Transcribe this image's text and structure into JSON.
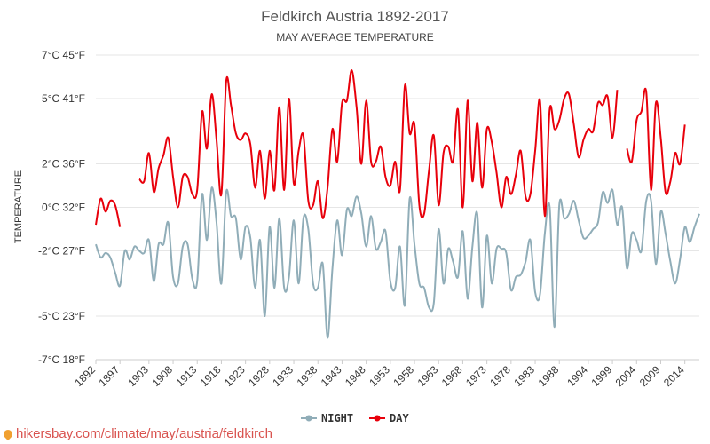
{
  "chart_data": {
    "type": "line",
    "title": "Feldkirch Austria 1892-2017",
    "subtitle": "MAY AVERAGE TEMPERATURE",
    "ylabel": "TEMPERATURE",
    "ylim": [
      -7,
      7
    ],
    "yticks": [
      {
        "value": 7,
        "label": "7°C 45°F"
      },
      {
        "value": 5,
        "label": "5°C 41°F"
      },
      {
        "value": 2,
        "label": "2°C 36°F"
      },
      {
        "value": 0,
        "label": "0°C 32°F"
      },
      {
        "value": -2,
        "label": "-2°C 27°F"
      },
      {
        "value": -5,
        "label": "-5°C 23°F"
      },
      {
        "value": -7,
        "label": "-7°C 18°F"
      }
    ],
    "xlim": [
      1892,
      2017
    ],
    "xticks": [
      1892,
      1897,
      1903,
      1908,
      1913,
      1918,
      1923,
      1928,
      1933,
      1938,
      1943,
      1948,
      1953,
      1958,
      1963,
      1968,
      1973,
      1978,
      1983,
      1988,
      1994,
      1999,
      2004,
      2009,
      2014
    ],
    "grid": true,
    "legend_position": "bottom",
    "series": [
      {
        "name": "NIGHT",
        "color": "#90adb8",
        "x_start": 1892,
        "values": [
          -1.7,
          -2.3,
          -2.1,
          -2.3,
          -3.0,
          -3.6,
          -2.0,
          -2.4,
          -1.8,
          -2.0,
          -2.1,
          -1.5,
          -3.4,
          -1.7,
          -1.7,
          -0.7,
          -3.2,
          -3.5,
          -1.8,
          -1.7,
          -3.3,
          -3.4,
          0.6,
          -1.5,
          0.9,
          -0.7,
          -3.5,
          0.7,
          -0.4,
          -0.5,
          -2.4,
          -0.9,
          -1.4,
          -3.7,
          -1.5,
          -5.0,
          -0.9,
          -3.7,
          -0.5,
          -3.7,
          -3.2,
          -0.6,
          -3.5,
          -0.5,
          -1.0,
          -3.5,
          -3.7,
          -2.6,
          -6.0,
          -2.8,
          -0.6,
          -2.2,
          -0.1,
          -0.4,
          0.5,
          -0.3,
          -1.8,
          -0.4,
          -1.9,
          -1.6,
          -1.1,
          -3.4,
          -3.7,
          -1.8,
          -4.5,
          0.4,
          -1.7,
          -3.5,
          -3.7,
          -4.6,
          -4.4,
          -1.0,
          -3.5,
          -1.9,
          -2.5,
          -3.2,
          -1.1,
          -4.2,
          -1.8,
          -0.3,
          -4.6,
          -1.3,
          -3.5,
          -1.9,
          -1.9,
          -2.1,
          -3.8,
          -3.2,
          -3.1,
          -2.5,
          -1.5,
          -3.9,
          -4.0,
          -1.2,
          0.0,
          -5.5,
          0.1,
          -0.5,
          -0.3,
          0.3,
          -0.6,
          -1.4,
          -1.3,
          -1.0,
          -0.7,
          0.7,
          0.2,
          0.8,
          -0.8,
          0.0,
          -2.8,
          -1.2,
          -1.5,
          -2.0,
          0.3,
          0.3,
          -2.6,
          -0.2,
          -1.2,
          -2.5,
          -3.5,
          -2.4,
          -0.9,
          -1.6,
          -0.9,
          -0.3
        ]
      },
      {
        "name": "DAY",
        "color": "#e8000b",
        "x_start": 1892,
        "values": [
          -0.8,
          0.4,
          -0.2,
          0.3,
          0.1,
          -0.9,
          null,
          null,
          null,
          1.3,
          1.2,
          2.5,
          0.7,
          1.8,
          2.4,
          3.2,
          1.4,
          0.0,
          1.4,
          1.4,
          0.6,
          0.8,
          4.4,
          2.7,
          5.2,
          3.1,
          0.6,
          5.8,
          4.7,
          3.4,
          3.1,
          3.4,
          2.9,
          0.9,
          2.6,
          0.4,
          2.6,
          0.8,
          4.6,
          0.8,
          5.0,
          1.1,
          2.6,
          3.3,
          0.3,
          0.1,
          1.2,
          -0.5,
          0.9,
          3.6,
          2.1,
          4.8,
          4.9,
          6.3,
          4.6,
          2.0,
          4.9,
          2.1,
          2.1,
          2.8,
          1.4,
          1.0,
          2.1,
          0.8,
          5.6,
          3.4,
          3.8,
          0.1,
          -0.3,
          1.7,
          3.3,
          0.1,
          2.5,
          2.8,
          2.1,
          4.5,
          0.0,
          4.9,
          1.2,
          3.9,
          0.9,
          3.6,
          3.0,
          1.6,
          0.0,
          1.4,
          0.6,
          1.5,
          2.6,
          0.5,
          0.6,
          2.6,
          4.9,
          -0.4,
          4.5,
          3.6,
          4.0,
          5.0,
          5.2,
          3.8,
          2.3,
          3.1,
          3.6,
          3.5,
          4.8,
          4.7,
          5.1,
          3.2,
          5.4,
          null,
          2.7,
          2.1,
          4.0,
          4.4,
          5.3,
          0.8,
          4.8,
          3.2,
          0.7,
          1.2,
          2.5,
          2.0,
          3.8
        ]
      }
    ]
  },
  "watermark": "hikersbay.com/climate/may/austria/feldkirch"
}
